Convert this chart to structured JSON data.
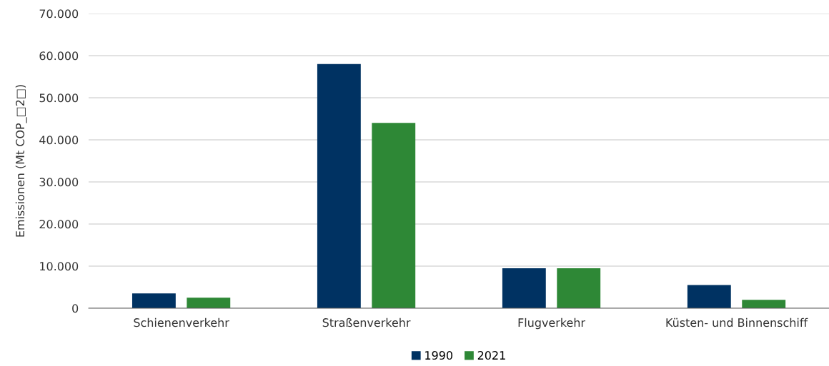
{
  "chart_data": {
    "type": "bar",
    "ylabel": "Emissionen (Mt COP_□2□)",
    "categories": [
      "Schienenverkehr",
      "Straßenverkehr",
      "Flugverkehr",
      "Küsten- und Binnenschiff"
    ],
    "series": [
      {
        "name": "1990",
        "color": "#003262",
        "values": [
          3500,
          58000,
          9500,
          5500
        ]
      },
      {
        "name": "2021",
        "color": "#2e8836",
        "values": [
          2500,
          44000,
          9500,
          2000
        ]
      }
    ],
    "ylim": [
      0,
      70000
    ],
    "yticks": [
      {
        "value": 0,
        "label": "0"
      },
      {
        "value": 10000,
        "label": "10.000"
      },
      {
        "value": 20000,
        "label": "20.000"
      },
      {
        "value": 30000,
        "label": "30.000"
      },
      {
        "value": 40000,
        "label": "40.000"
      },
      {
        "value": 50000,
        "label": "50.000"
      },
      {
        "value": 60000,
        "label": "60.000"
      },
      {
        "value": 70000,
        "label": "70.000"
      }
    ],
    "grid": "y",
    "legend": "bottom"
  }
}
